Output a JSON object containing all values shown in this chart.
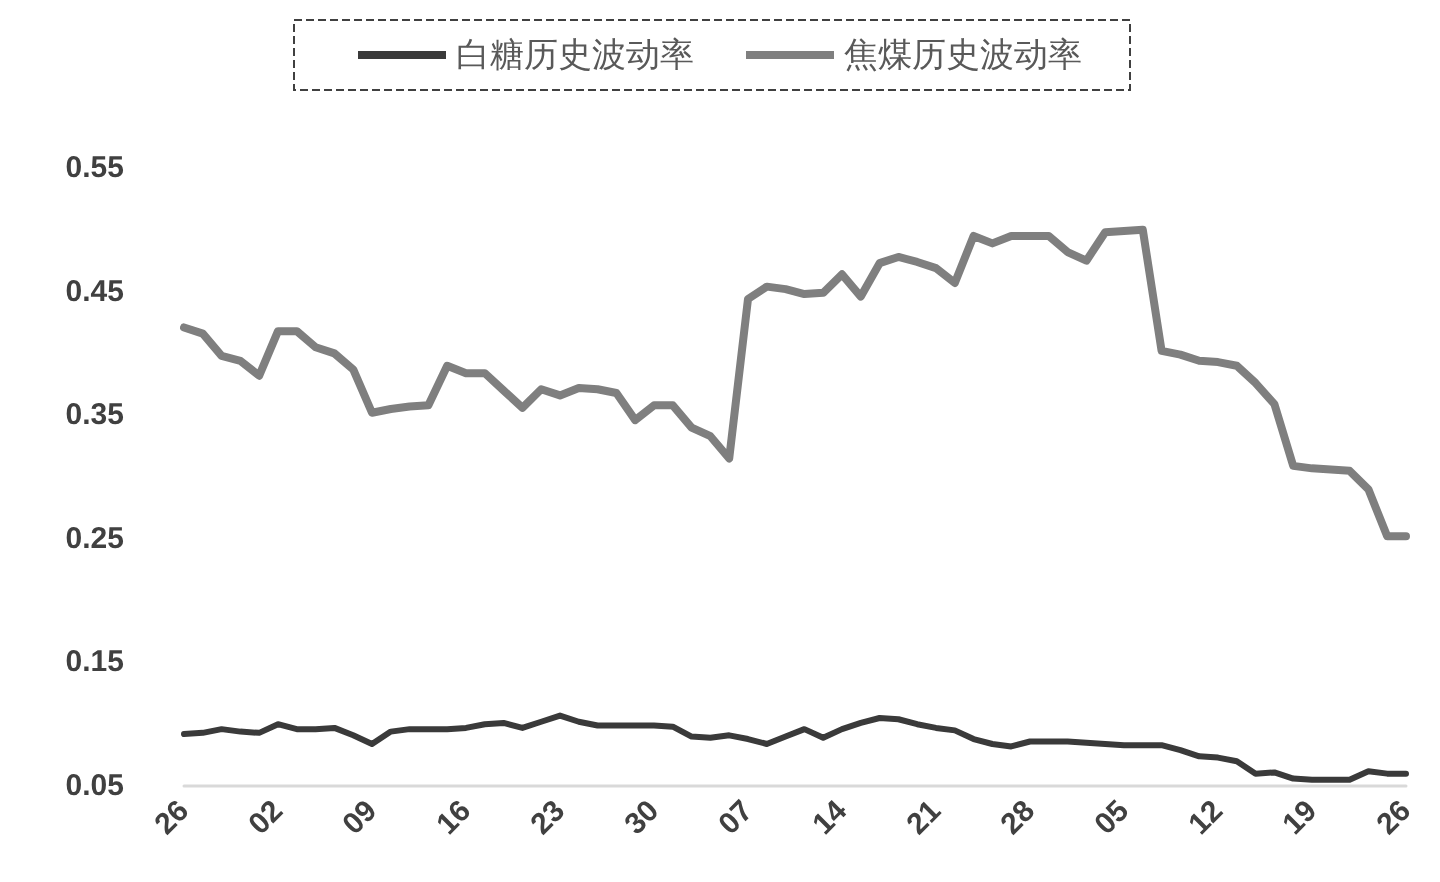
{
  "chart_data": {
    "type": "line",
    "categories": [
      "26",
      null,
      null,
      null,
      null,
      "02",
      null,
      null,
      null,
      null,
      "09",
      null,
      null,
      null,
      null,
      "16",
      null,
      null,
      null,
      null,
      "23",
      null,
      null,
      null,
      null,
      "30",
      null,
      null,
      null,
      null,
      "07",
      null,
      null,
      null,
      null,
      "14",
      null,
      null,
      null,
      null,
      "21",
      null,
      null,
      null,
      null,
      "28",
      null,
      null,
      null,
      null,
      "05",
      null,
      null,
      null,
      null,
      "12",
      null,
      null,
      null,
      null,
      "19",
      null,
      null,
      null,
      null,
      "26"
    ],
    "series": [
      {
        "name": "白糖历史波动率",
        "color": "#3a3a3a",
        "values": [
          0.092,
          0.093,
          0.096,
          0.094,
          0.093,
          0.1,
          0.096,
          0.096,
          0.097,
          0.091,
          0.084,
          0.094,
          0.096,
          0.096,
          0.096,
          0.097,
          0.1,
          0.101,
          0.097,
          0.102,
          0.107,
          0.102,
          0.099,
          0.099,
          0.099,
          0.099,
          0.098,
          0.09,
          0.089,
          0.091,
          0.088,
          0.084,
          0.09,
          0.096,
          0.089,
          0.096,
          0.101,
          0.105,
          0.104,
          0.1,
          0.097,
          0.095,
          0.088,
          0.084,
          0.082,
          0.086,
          0.086,
          0.086,
          0.085,
          0.084,
          0.083,
          0.083,
          0.083,
          0.079,
          0.074,
          0.073,
          0.07,
          0.06,
          0.061,
          0.056,
          0.055,
          0.055,
          0.055,
          0.062,
          0.06,
          0.06
        ]
      },
      {
        "name": "焦煤历史波动率",
        "color": "#7f7f7f",
        "values": [
          0.421,
          0.416,
          0.398,
          0.394,
          0.382,
          0.418,
          0.418,
          0.405,
          0.4,
          0.387,
          0.352,
          0.355,
          0.357,
          0.358,
          0.39,
          0.384,
          0.384,
          0.37,
          0.356,
          0.371,
          0.366,
          0.372,
          0.371,
          0.368,
          0.346,
          0.358,
          0.358,
          0.34,
          0.333,
          0.315,
          0.444,
          0.454,
          0.452,
          0.448,
          0.449,
          0.464,
          0.446,
          0.473,
          0.478,
          0.474,
          0.469,
          0.457,
          0.495,
          0.489,
          0.495,
          0.495,
          0.495,
          0.482,
          0.475,
          0.498,
          0.499,
          0.5,
          0.402,
          0.399,
          0.394,
          0.393,
          0.39,
          0.376,
          0.359,
          0.309,
          0.307,
          0.306,
          0.305,
          0.29,
          0.252,
          0.252
        ]
      }
    ],
    "ylim": [
      0.05,
      0.55
    ],
    "yticks": [
      0.05,
      0.15,
      0.25,
      0.35,
      0.45,
      0.55
    ],
    "grid": false,
    "legend": "top",
    "marker": "none",
    "line_style": "solid"
  }
}
